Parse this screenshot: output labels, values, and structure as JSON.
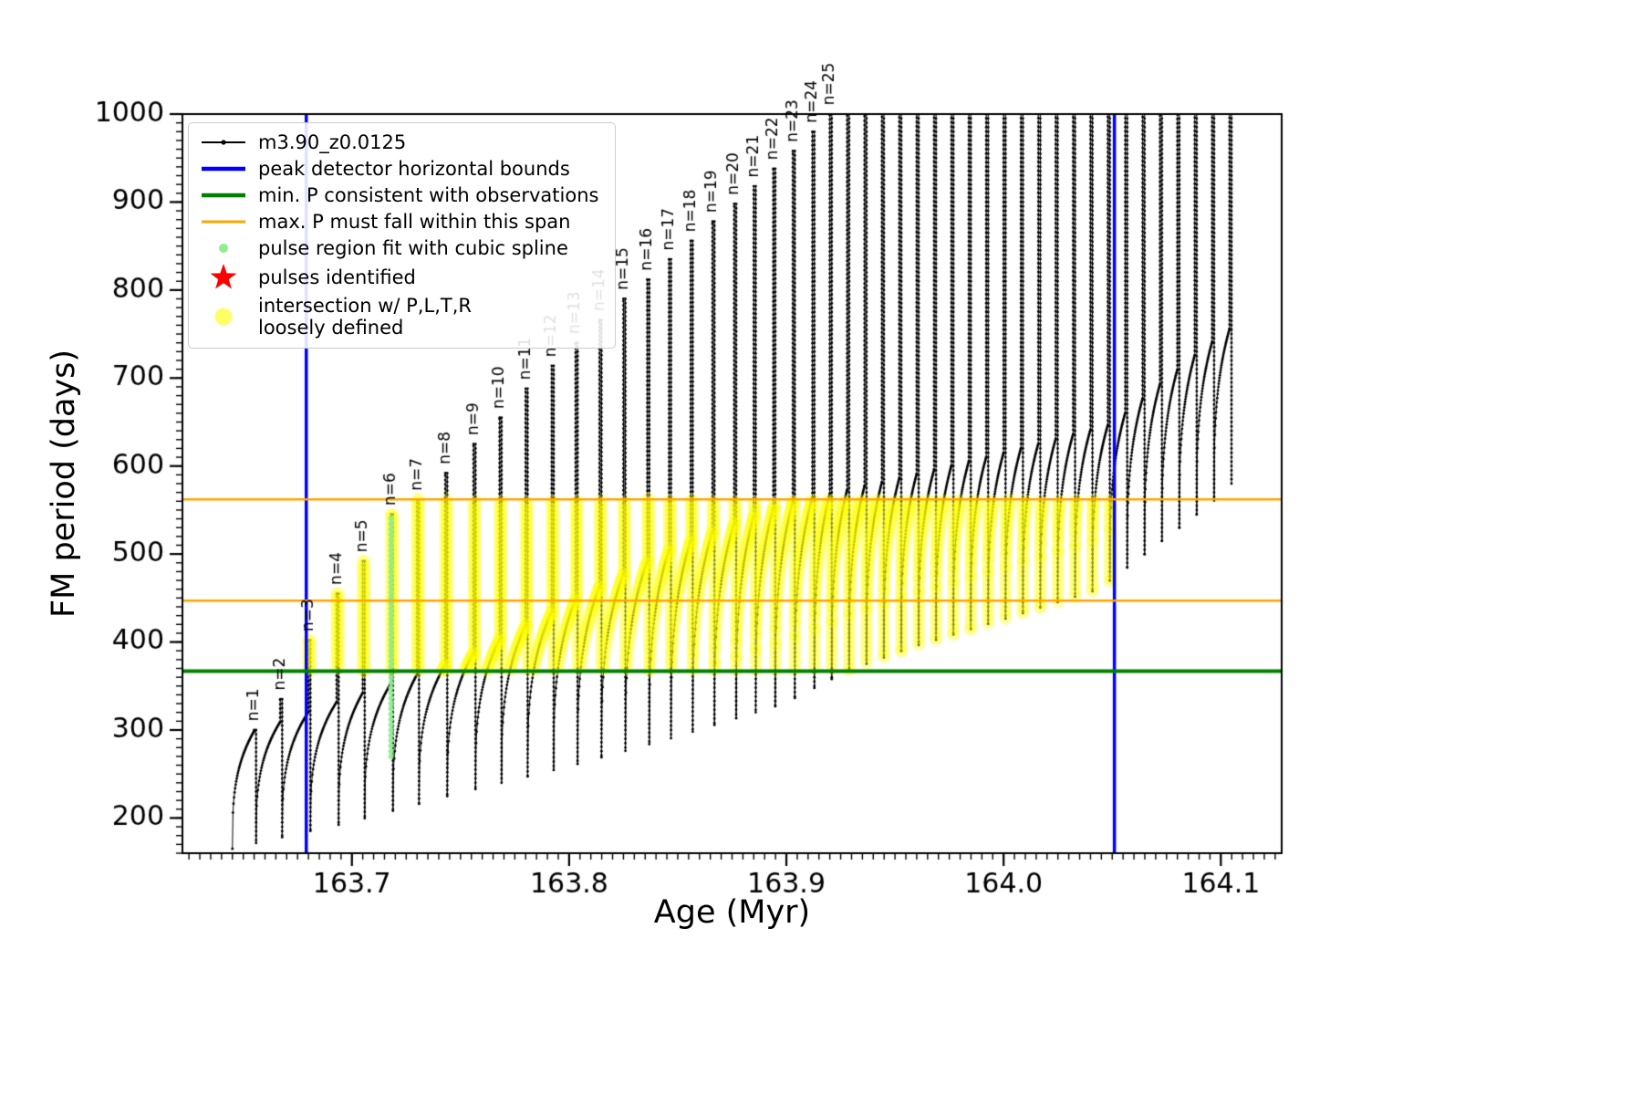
{
  "chart_data": {
    "type": "line",
    "title": "",
    "xlabel": "Age (Myr)",
    "ylabel": "FM period (days)",
    "xlim": [
      163.622,
      164.128
    ],
    "ylim": [
      160,
      1000
    ],
    "x_ticks": [
      "163.7",
      "163.8",
      "163.9",
      "164.0",
      "164.1"
    ],
    "x_tick_values": [
      163.7,
      163.8,
      163.9,
      164.0,
      164.1
    ],
    "x_minor_step": 0.005,
    "y_ticks": [
      200,
      300,
      400,
      500,
      600,
      700,
      800,
      900,
      1000
    ],
    "y_minor_step": 10,
    "grid": false,
    "legend_position": "upper-left",
    "series": {
      "label": "m3.90_z0.0125",
      "color": "#000000",
      "start_x": 163.645,
      "spike_x": [
        163.655,
        163.667,
        163.68,
        163.693,
        163.705,
        163.718,
        163.73,
        163.743,
        163.756,
        163.768,
        163.78,
        163.792,
        163.803,
        163.814,
        163.825,
        163.836,
        163.846,
        163.856,
        163.866,
        163.876,
        163.885,
        163.894,
        163.903,
        163.912,
        163.92,
        163.928,
        163.936,
        163.944,
        163.952,
        163.96,
        163.968,
        163.976,
        163.984,
        163.992,
        164.0,
        164.008,
        164.016,
        164.024,
        164.032,
        164.04,
        164.048,
        164.056,
        164.064,
        164.072,
        164.08,
        164.088,
        164.096,
        164.104
      ],
      "spike_peak": [
        300,
        335,
        402,
        455,
        492,
        545,
        562,
        592,
        625,
        655,
        688,
        714,
        740,
        766,
        790,
        812,
        835,
        856,
        878,
        898,
        918,
        938,
        958,
        980,
        1002,
        1030,
        1030,
        1030,
        1030,
        1030,
        1030,
        1030,
        1030,
        1030,
        1030,
        1030,
        1030,
        1030,
        1030,
        1030,
        1030,
        1030,
        1030,
        1030,
        1030,
        1030,
        1030,
        1030
      ],
      "spike_labels": [
        "n=1",
        "n=2",
        "n=3",
        "n=4",
        "n=5",
        "n=6",
        "n=7",
        "n=8",
        "n=9",
        "n=10",
        "n=11",
        "n=12",
        "n=13",
        "n=14",
        "n=15",
        "n=16",
        "n=17",
        "n=18",
        "n=19",
        "n=20",
        "n=21",
        "n=22",
        "n=23",
        "n=24",
        "n=25"
      ],
      "dip_envelope": {
        "x": [
          163.645,
          163.7,
          163.75,
          163.8,
          163.85,
          163.9,
          163.93,
          163.96,
          164.0,
          164.045,
          164.09,
          164.128
        ],
        "y": [
          165,
          195,
          228,
          258,
          292,
          330,
          368,
          395,
          425,
          460,
          545,
          620
        ]
      },
      "shoulder_envelope": {
        "x": [
          163.645,
          163.7,
          163.75,
          163.8,
          163.85,
          163.9,
          163.95,
          164.0,
          164.05,
          164.09,
          164.128
        ],
        "y": [
          290,
          338,
          380,
          445,
          510,
          558,
          585,
          615,
          648,
          730,
          800
        ]
      }
    },
    "annotations": {
      "vlines": {
        "label": "peak detector horizontal bounds",
        "color": "#0000ff",
        "x": [
          163.679,
          164.051
        ]
      },
      "hline_min": {
        "label": "min. P consistent with observations",
        "color": "#008000",
        "y": 367
      },
      "hlines_span": {
        "label": "max. P must fall within this span",
        "color": "#ffa500",
        "y": [
          447,
          562
        ]
      },
      "pulse_fit": {
        "label": "pulse region fit with cubic spline",
        "color": "#90ee90",
        "x": 163.718,
        "y_range": [
          270,
          545
        ]
      },
      "pulses_identified": {
        "label": "pulses identified",
        "color": "#ff0000"
      },
      "intersection": {
        "label": "intersection w/ P,L,T,R",
        "label2": "loosely defined",
        "color": "#ffff00",
        "x_range": [
          163.679,
          164.051
        ],
        "y_range": [
          367,
          562
        ]
      }
    }
  }
}
